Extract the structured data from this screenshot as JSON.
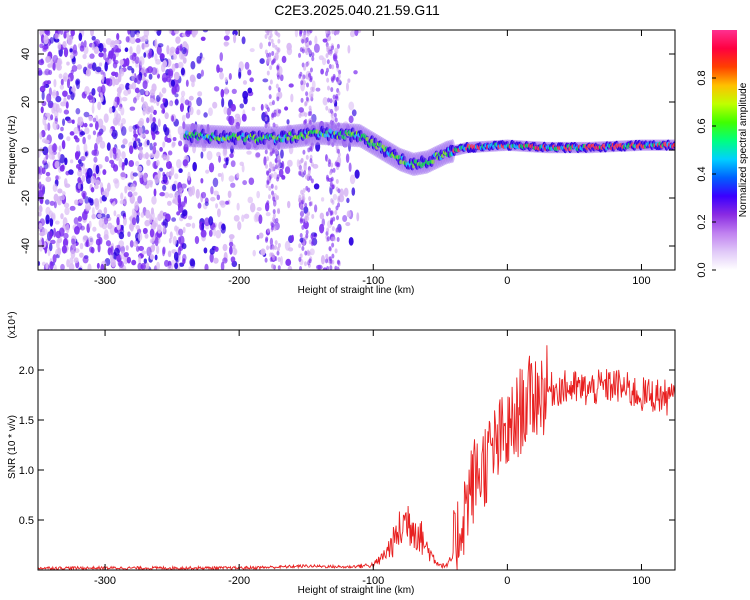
{
  "page_title": "C2E3.2025.040.21.59.G11",
  "colors": {
    "spectrogram_ridge": "#00e040",
    "spectrogram_body": "#2a00e0",
    "spectrogram_noise": "#7a2af0",
    "snr_line": "#e82020"
  },
  "chart_data": [
    {
      "type": "heatmap",
      "title": "C2E3.2025.040.21.59.G11",
      "xlabel": "Height of straight line (km)",
      "ylabel": "Frequency (Hz)",
      "xlim": [
        -350,
        125
      ],
      "ylim": [
        -50,
        50
      ],
      "xticks": [
        -300,
        -200,
        -100,
        0,
        100
      ],
      "yticks": [
        -40,
        -20,
        0,
        20,
        40
      ],
      "grid": false,
      "colorbar": {
        "label": "Normalized spectral amplitude",
        "range": [
          0,
          1
        ],
        "ticks": [
          "0.0",
          "0.2",
          "0.4",
          "0.6",
          "0.8"
        ],
        "colormap": [
          "#ffffff",
          "#e0c8f8",
          "#c080f0",
          "#8a2be2",
          "#3a00ff",
          "#0060ff",
          "#00d0ff",
          "#00ff80",
          "#40ff00",
          "#c0ff00",
          "#ffc000",
          "#ff4000",
          "#ff0040",
          "#ff3090"
        ]
      },
      "ridge_center_hz": [
        {
          "x": -235,
          "y": 6
        },
        {
          "x": -200,
          "y": 5
        },
        {
          "x": -170,
          "y": 5
        },
        {
          "x": -140,
          "y": 7
        },
        {
          "x": -110,
          "y": 6
        },
        {
          "x": -95,
          "y": 1
        },
        {
          "x": -80,
          "y": -4
        },
        {
          "x": -70,
          "y": -6
        },
        {
          "x": -60,
          "y": -5
        },
        {
          "x": -45,
          "y": -1
        },
        {
          "x": -30,
          "y": 1
        },
        {
          "x": 0,
          "y": 2
        },
        {
          "x": 30,
          "y": 1
        },
        {
          "x": 60,
          "y": 1
        },
        {
          "x": 100,
          "y": 2
        },
        {
          "x": 125,
          "y": 2
        }
      ],
      "noise_region_km": [
        -350,
        -110
      ]
    },
    {
      "type": "line",
      "xlabel": "Height of straight line (km)",
      "ylabel": "SNR (10 * v/v)",
      "scale_label": "(x10⁴)",
      "xlim": [
        -350,
        125
      ],
      "ylim": [
        0,
        2.4
      ],
      "xticks": [
        -300,
        -200,
        -100,
        0,
        100
      ],
      "yticks": [
        "0.5",
        "1.0",
        "1.5",
        "2.0"
      ],
      "grid": false,
      "series": [
        {
          "x": [
            -350,
            -300,
            -250,
            -200,
            -170,
            -150,
            -120,
            -100,
            -95,
            -90,
            -85,
            -80,
            -75,
            -70,
            -65,
            -60,
            -55,
            -50,
            -45,
            -40,
            -35,
            -30,
            -25,
            -20,
            -15,
            -10,
            -5,
            0,
            5,
            10,
            20,
            30,
            40,
            50,
            60,
            70,
            80,
            90,
            100,
            110,
            120,
            125
          ],
          "y": [
            0.02,
            0.02,
            0.02,
            0.02,
            0.03,
            0.04,
            0.03,
            0.05,
            0.1,
            0.18,
            0.28,
            0.4,
            0.5,
            0.45,
            0.35,
            0.22,
            0.12,
            0.05,
            0.04,
            0.15,
            0.45,
            0.7,
            0.9,
            1.0,
            1.1,
            1.2,
            1.3,
            1.35,
            1.45,
            1.6,
            1.75,
            1.8,
            1.82,
            1.82,
            1.8,
            1.83,
            1.85,
            1.8,
            1.75,
            1.75,
            1.72,
            1.7
          ]
        }
      ]
    }
  ]
}
